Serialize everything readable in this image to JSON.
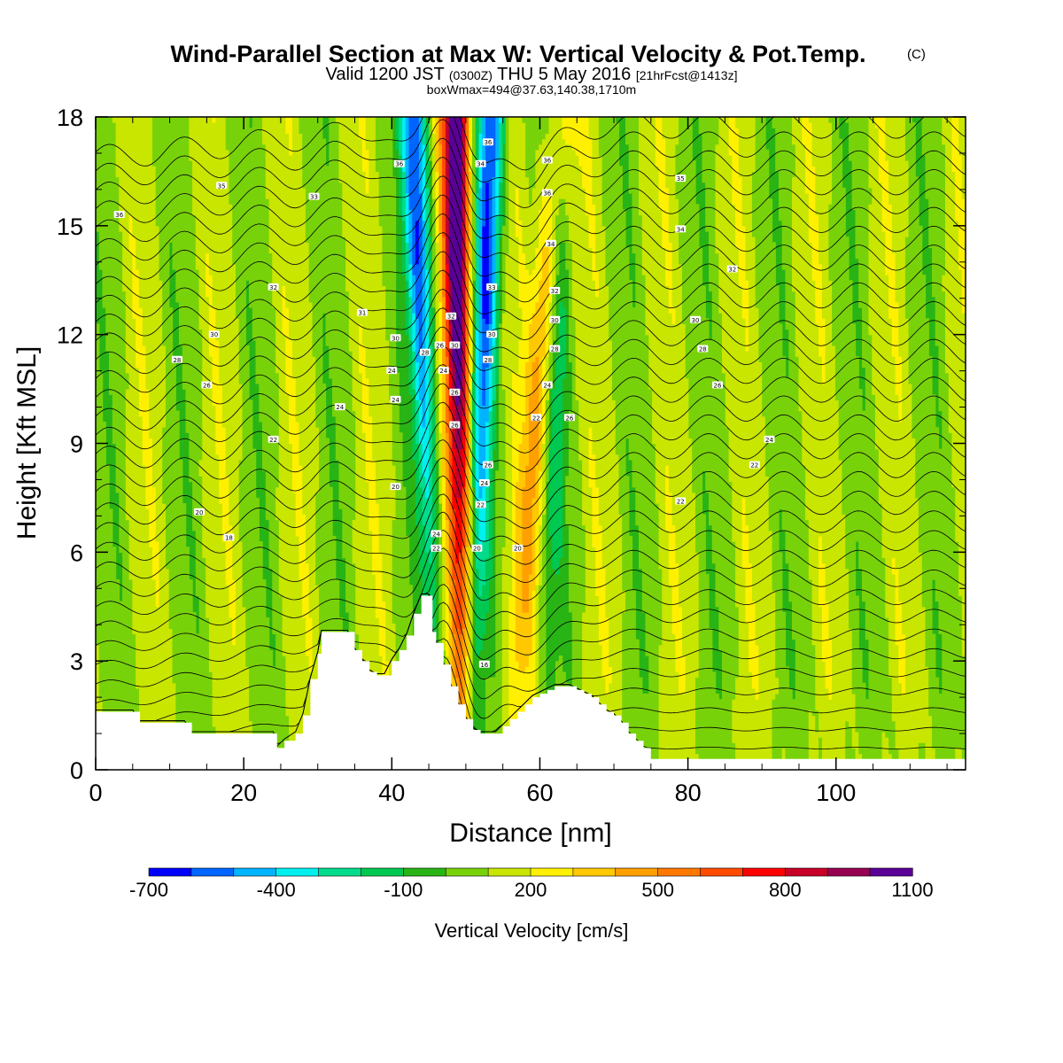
{
  "chart_data": {
    "type": "heatmap",
    "title": "Wind-Parallel Section at Max W: Vertical Velocity & Pot.Temp.",
    "title_copyright": "(C)",
    "subtitle_valid": "Valid 1200 JST",
    "subtitle_utc": "(0300Z)",
    "subtitle_date": "THU 5 May 2016",
    "subtitle_fcst": "[21hrFcst@1413z]",
    "subtitle_box": "boxWmax=494@37.63,140.38,1710m",
    "xlabel": "Distance [nm]",
    "ylabel": "Height [Kft MSL]",
    "xlim": [
      0,
      117.5
    ],
    "ylim": [
      0,
      18
    ],
    "x_ticks": [
      "0",
      "20",
      "40",
      "60",
      "80",
      "100"
    ],
    "y_ticks": [
      "0",
      "3",
      "6",
      "9",
      "12",
      "15",
      "18"
    ],
    "colorbar": {
      "title": "Vertical Velocity [cm/s]",
      "tick_labels": [
        "-700",
        "-400",
        "-100",
        "200",
        "500",
        "800",
        "1100"
      ],
      "colors": [
        "#0000ff",
        "#0064ff",
        "#00b4ff",
        "#00f0f0",
        "#00dc8c",
        "#00c850",
        "#28b414",
        "#78d20a",
        "#c8e600",
        "#fff000",
        "#ffc800",
        "#ffa000",
        "#ff7800",
        "#ff4b00",
        "#ff0000",
        "#c80028",
        "#960050",
        "#5a0096"
      ]
    },
    "terrain_kft": [
      [
        0,
        1.6
      ],
      [
        5,
        1.6
      ],
      [
        6,
        1.3
      ],
      [
        12,
        1.3
      ],
      [
        13,
        1.0
      ],
      [
        20,
        1.0
      ],
      [
        24,
        1.0
      ],
      [
        24.5,
        0.6
      ],
      [
        25.5,
        0.8
      ],
      [
        27,
        1.0
      ],
      [
        28,
        1.5
      ],
      [
        29,
        2.5
      ],
      [
        30,
        3.2
      ],
      [
        30.5,
        3.8
      ],
      [
        33,
        3.8
      ],
      [
        34,
        3.8
      ],
      [
        35,
        3.3
      ],
      [
        36,
        3.0
      ],
      [
        37,
        2.7
      ],
      [
        38,
        2.6
      ],
      [
        39,
        2.6
      ],
      [
        40,
        3.0
      ],
      [
        41,
        3.3
      ],
      [
        42,
        3.7
      ],
      [
        43,
        4.3
      ],
      [
        44,
        4.8
      ],
      [
        45,
        4.8
      ],
      [
        45.5,
        3.8
      ],
      [
        46,
        3.5
      ],
      [
        47,
        2.9
      ],
      [
        48,
        2.3
      ],
      [
        49,
        1.8
      ],
      [
        50,
        1.4
      ],
      [
        51,
        1.1
      ],
      [
        52,
        1.0
      ],
      [
        54,
        1.0
      ],
      [
        55,
        1.2
      ],
      [
        56,
        1.4
      ],
      [
        57,
        1.6
      ],
      [
        58,
        1.8
      ],
      [
        59,
        2.0
      ],
      [
        60,
        2.1
      ],
      [
        61,
        2.2
      ],
      [
        62,
        2.3
      ],
      [
        64,
        2.3
      ],
      [
        65,
        2.2
      ],
      [
        66,
        2.1
      ],
      [
        67,
        2.0
      ],
      [
        68,
        1.8
      ],
      [
        69,
        1.6
      ],
      [
        70,
        1.5
      ],
      [
        71,
        1.3
      ],
      [
        72,
        1.0
      ],
      [
        73,
        0.8
      ],
      [
        74,
        0.6
      ],
      [
        75,
        0.3
      ],
      [
        80,
        0.3
      ],
      [
        90,
        0.3
      ],
      [
        100,
        0.3
      ],
      [
        110,
        0.3
      ],
      [
        117.5,
        0.3
      ]
    ],
    "updraft_cm_s": [
      {
        "x_base": 49.5,
        "x_top": 48.6,
        "y_base": 2.5,
        "peak": 1100
      },
      {
        "x_base": 57,
        "x_top": 63,
        "y_base": 2.5,
        "peak": 450
      }
    ],
    "downdraft_cm_s": [
      {
        "x_base": 45.5,
        "x_top": 43,
        "y_base": 4.5,
        "peak": -700
      },
      {
        "x_base": 51,
        "x_top": 53.5,
        "y_base": 2.5,
        "peak": -700
      },
      {
        "x_base": 61,
        "x_top": 63,
        "y_base": 3.0,
        "peak": -350
      }
    ],
    "theta_contour_labels": [
      {
        "x": 3.2,
        "y": 15.3,
        "label": "36"
      },
      {
        "x": 17,
        "y": 16.1,
        "label": "35"
      },
      {
        "x": 29.5,
        "y": 15.8,
        "label": "33"
      },
      {
        "x": 24,
        "y": 13.3,
        "label": "32"
      },
      {
        "x": 36,
        "y": 12.6,
        "label": "31"
      },
      {
        "x": 16,
        "y": 12.0,
        "label": "30"
      },
      {
        "x": 40.5,
        "y": 11.9,
        "label": "30"
      },
      {
        "x": 11,
        "y": 11.3,
        "label": "28"
      },
      {
        "x": 15,
        "y": 10.6,
        "label": "26"
      },
      {
        "x": 40,
        "y": 11.0,
        "label": "24"
      },
      {
        "x": 40.5,
        "y": 10.2,
        "label": "24"
      },
      {
        "x": 33,
        "y": 10.0,
        "label": "24"
      },
      {
        "x": 24,
        "y": 9.1,
        "label": "22"
      },
      {
        "x": 40.5,
        "y": 7.8,
        "label": "20"
      },
      {
        "x": 14,
        "y": 7.1,
        "label": "20"
      },
      {
        "x": 18,
        "y": 6.4,
        "label": "18"
      },
      {
        "x": 41,
        "y": 16.7,
        "label": "36"
      },
      {
        "x": 53,
        "y": 17.3,
        "label": "36"
      },
      {
        "x": 52,
        "y": 16.7,
        "label": "34"
      },
      {
        "x": 53.5,
        "y": 13.3,
        "label": "33"
      },
      {
        "x": 48,
        "y": 12.5,
        "label": "32"
      },
      {
        "x": 53.5,
        "y": 12.0,
        "label": "30"
      },
      {
        "x": 48.5,
        "y": 11.7,
        "label": "30"
      },
      {
        "x": 44.5,
        "y": 11.5,
        "label": "28"
      },
      {
        "x": 46.5,
        "y": 11.7,
        "label": "26"
      },
      {
        "x": 53,
        "y": 11.3,
        "label": "28"
      },
      {
        "x": 47,
        "y": 11.0,
        "label": "24"
      },
      {
        "x": 48.5,
        "y": 10.4,
        "label": "26"
      },
      {
        "x": 48.5,
        "y": 9.5,
        "label": "26"
      },
      {
        "x": 53,
        "y": 8.4,
        "label": "26"
      },
      {
        "x": 52.5,
        "y": 7.9,
        "label": "24"
      },
      {
        "x": 52,
        "y": 7.3,
        "label": "22"
      },
      {
        "x": 46,
        "y": 6.5,
        "label": "24"
      },
      {
        "x": 46,
        "y": 6.1,
        "label": "22"
      },
      {
        "x": 51.5,
        "y": 6.1,
        "label": "20"
      },
      {
        "x": 57,
        "y": 6.1,
        "label": "20"
      },
      {
        "x": 52.5,
        "y": 2.9,
        "label": "16"
      },
      {
        "x": 61,
        "y": 16.8,
        "label": "36"
      },
      {
        "x": 61,
        "y": 15.9,
        "label": "36"
      },
      {
        "x": 61.5,
        "y": 14.5,
        "label": "34"
      },
      {
        "x": 62,
        "y": 13.2,
        "label": "32"
      },
      {
        "x": 62,
        "y": 12.4,
        "label": "30"
      },
      {
        "x": 62,
        "y": 11.6,
        "label": "28"
      },
      {
        "x": 61,
        "y": 10.6,
        "label": "24"
      },
      {
        "x": 59.5,
        "y": 9.7,
        "label": "22"
      },
      {
        "x": 64,
        "y": 9.7,
        "label": "26"
      },
      {
        "x": 79,
        "y": 16.3,
        "label": "35"
      },
      {
        "x": 79,
        "y": 14.9,
        "label": "34"
      },
      {
        "x": 86,
        "y": 13.8,
        "label": "32"
      },
      {
        "x": 81,
        "y": 12.4,
        "label": "30"
      },
      {
        "x": 82,
        "y": 11.6,
        "label": "28"
      },
      {
        "x": 84,
        "y": 10.6,
        "label": "26"
      },
      {
        "x": 91,
        "y": 9.1,
        "label": "24"
      },
      {
        "x": 89,
        "y": 8.4,
        "label": "22"
      },
      {
        "x": 79,
        "y": 7.4,
        "label": "22"
      }
    ]
  }
}
